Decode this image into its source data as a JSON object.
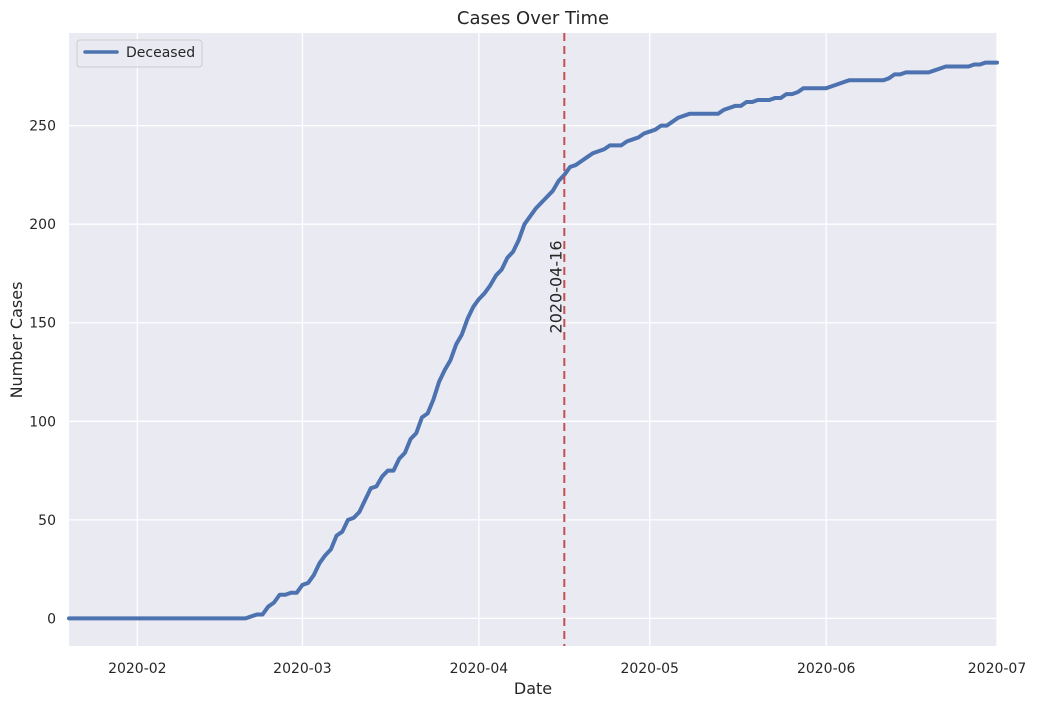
{
  "chart_data": {
    "type": "line",
    "title": "Cases Over Time",
    "xlabel": "Date",
    "ylabel": "Number Cases",
    "x_axis_type": "date",
    "xlim": [
      "2020-01-20",
      "2020-07-01"
    ],
    "ylim": [
      -14,
      297
    ],
    "x_ticks": [
      "2020-02-01",
      "2020-03-01",
      "2020-04-01",
      "2020-05-01",
      "2020-06-01",
      "2020-07-01"
    ],
    "x_tick_labels": [
      "2020-02",
      "2020-03",
      "2020-04",
      "2020-05",
      "2020-06",
      "2020-07"
    ],
    "y_ticks": [
      0,
      50,
      100,
      150,
      200,
      250
    ],
    "grid": true,
    "legend_position": "top-left",
    "background_color": "#eaeaf2",
    "series": [
      {
        "name": "Deceased",
        "color": "#4c72b0",
        "points": [
          [
            "2020-01-20",
            0
          ],
          [
            "2020-02-20",
            0
          ],
          [
            "2020-02-21",
            1
          ],
          [
            "2020-02-22",
            2
          ],
          [
            "2020-02-23",
            2
          ],
          [
            "2020-02-24",
            6
          ],
          [
            "2020-02-25",
            8
          ],
          [
            "2020-02-26",
            12
          ],
          [
            "2020-02-27",
            12
          ],
          [
            "2020-02-28",
            13
          ],
          [
            "2020-02-29",
            13
          ],
          [
            "2020-03-01",
            17
          ],
          [
            "2020-03-02",
            18
          ],
          [
            "2020-03-03",
            22
          ],
          [
            "2020-03-04",
            28
          ],
          [
            "2020-03-05",
            32
          ],
          [
            "2020-03-06",
            35
          ],
          [
            "2020-03-07",
            42
          ],
          [
            "2020-03-08",
            44
          ],
          [
            "2020-03-09",
            50
          ],
          [
            "2020-03-10",
            51
          ],
          [
            "2020-03-11",
            54
          ],
          [
            "2020-03-12",
            60
          ],
          [
            "2020-03-13",
            66
          ],
          [
            "2020-03-14",
            67
          ],
          [
            "2020-03-15",
            72
          ],
          [
            "2020-03-16",
            75
          ],
          [
            "2020-03-17",
            75
          ],
          [
            "2020-03-18",
            81
          ],
          [
            "2020-03-19",
            84
          ],
          [
            "2020-03-20",
            91
          ],
          [
            "2020-03-21",
            94
          ],
          [
            "2020-03-22",
            102
          ],
          [
            "2020-03-23",
            104
          ],
          [
            "2020-03-24",
            111
          ],
          [
            "2020-03-25",
            120
          ],
          [
            "2020-03-26",
            126
          ],
          [
            "2020-03-27",
            131
          ],
          [
            "2020-03-28",
            139
          ],
          [
            "2020-03-29",
            144
          ],
          [
            "2020-03-30",
            152
          ],
          [
            "2020-03-31",
            158
          ],
          [
            "2020-04-01",
            162
          ],
          [
            "2020-04-02",
            165
          ],
          [
            "2020-04-03",
            169
          ],
          [
            "2020-04-04",
            174
          ],
          [
            "2020-04-05",
            177
          ],
          [
            "2020-04-06",
            183
          ],
          [
            "2020-04-07",
            186
          ],
          [
            "2020-04-08",
            192
          ],
          [
            "2020-04-09",
            200
          ],
          [
            "2020-04-10",
            204
          ],
          [
            "2020-04-11",
            208
          ],
          [
            "2020-04-12",
            211
          ],
          [
            "2020-04-13",
            214
          ],
          [
            "2020-04-14",
            217
          ],
          [
            "2020-04-15",
            222
          ],
          [
            "2020-04-16",
            225
          ],
          [
            "2020-04-17",
            229
          ],
          [
            "2020-04-18",
            230
          ],
          [
            "2020-04-19",
            232
          ],
          [
            "2020-04-20",
            234
          ],
          [
            "2020-04-21",
            236
          ],
          [
            "2020-04-22",
            237
          ],
          [
            "2020-04-23",
            238
          ],
          [
            "2020-04-24",
            240
          ],
          [
            "2020-04-25",
            240
          ],
          [
            "2020-04-26",
            240
          ],
          [
            "2020-04-27",
            242
          ],
          [
            "2020-04-28",
            243
          ],
          [
            "2020-04-29",
            244
          ],
          [
            "2020-04-30",
            246
          ],
          [
            "2020-05-01",
            247
          ],
          [
            "2020-05-02",
            248
          ],
          [
            "2020-05-03",
            250
          ],
          [
            "2020-05-04",
            250
          ],
          [
            "2020-05-05",
            252
          ],
          [
            "2020-05-06",
            254
          ],
          [
            "2020-05-07",
            255
          ],
          [
            "2020-05-08",
            256
          ],
          [
            "2020-05-09",
            256
          ],
          [
            "2020-05-10",
            256
          ],
          [
            "2020-05-11",
            256
          ],
          [
            "2020-05-12",
            256
          ],
          [
            "2020-05-13",
            256
          ],
          [
            "2020-05-14",
            258
          ],
          [
            "2020-05-15",
            259
          ],
          [
            "2020-05-16",
            260
          ],
          [
            "2020-05-17",
            260
          ],
          [
            "2020-05-18",
            262
          ],
          [
            "2020-05-19",
            262
          ],
          [
            "2020-05-20",
            263
          ],
          [
            "2020-05-21",
            263
          ],
          [
            "2020-05-22",
            263
          ],
          [
            "2020-05-23",
            264
          ],
          [
            "2020-05-24",
            264
          ],
          [
            "2020-05-25",
            266
          ],
          [
            "2020-05-26",
            266
          ],
          [
            "2020-05-27",
            267
          ],
          [
            "2020-05-28",
            269
          ],
          [
            "2020-05-29",
            269
          ],
          [
            "2020-05-30",
            269
          ],
          [
            "2020-05-31",
            269
          ],
          [
            "2020-06-01",
            269
          ],
          [
            "2020-06-02",
            270
          ],
          [
            "2020-06-03",
            271
          ],
          [
            "2020-06-04",
            272
          ],
          [
            "2020-06-05",
            273
          ],
          [
            "2020-06-06",
            273
          ],
          [
            "2020-06-07",
            273
          ],
          [
            "2020-06-08",
            273
          ],
          [
            "2020-06-09",
            273
          ],
          [
            "2020-06-10",
            273
          ],
          [
            "2020-06-11",
            273
          ],
          [
            "2020-06-12",
            274
          ],
          [
            "2020-06-13",
            276
          ],
          [
            "2020-06-14",
            276
          ],
          [
            "2020-06-15",
            277
          ],
          [
            "2020-06-16",
            277
          ],
          [
            "2020-06-17",
            277
          ],
          [
            "2020-06-18",
            277
          ],
          [
            "2020-06-19",
            277
          ],
          [
            "2020-06-20",
            278
          ],
          [
            "2020-06-21",
            279
          ],
          [
            "2020-06-22",
            280
          ],
          [
            "2020-06-23",
            280
          ],
          [
            "2020-06-24",
            280
          ],
          [
            "2020-06-25",
            280
          ],
          [
            "2020-06-26",
            280
          ],
          [
            "2020-06-27",
            281
          ],
          [
            "2020-06-28",
            281
          ],
          [
            "2020-06-29",
            282
          ],
          [
            "2020-06-30",
            282
          ],
          [
            "2020-07-01",
            282
          ]
        ]
      }
    ],
    "annotations": [
      {
        "type": "vline",
        "x": "2020-04-16",
        "label": "2020-04-16",
        "color": "#c44e52",
        "style": "dashed"
      }
    ]
  }
}
